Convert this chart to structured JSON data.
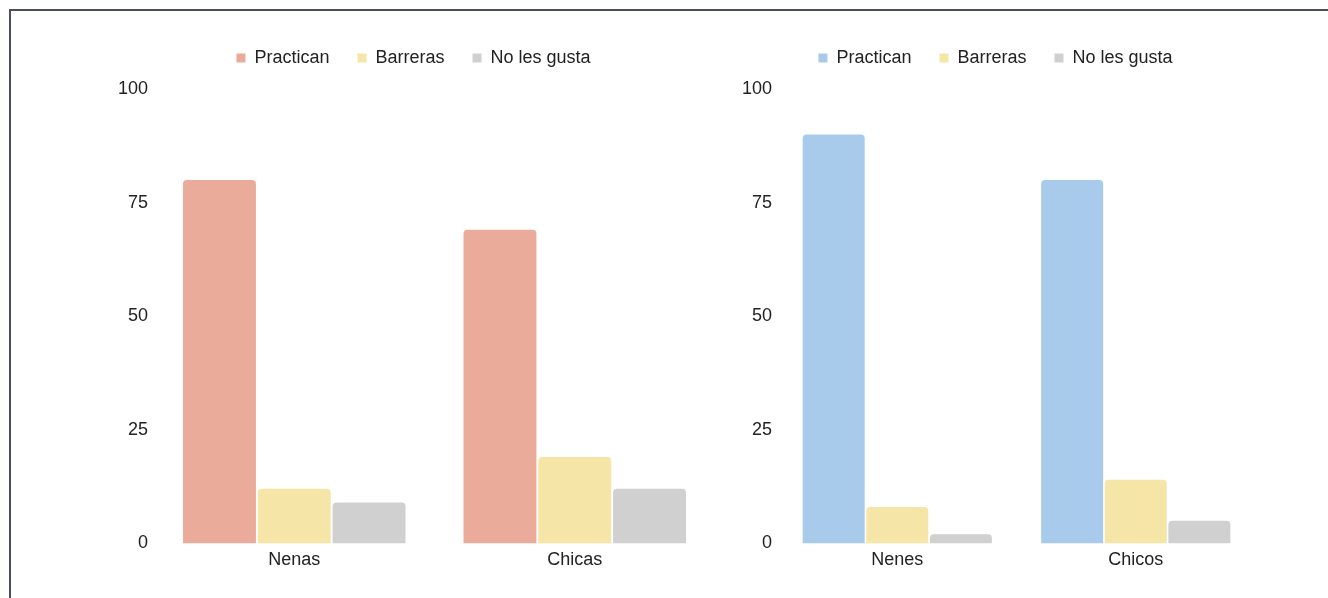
{
  "chart_data": [
    {
      "type": "bar",
      "categories": [
        "Nenas",
        "Chicas"
      ],
      "series": [
        {
          "name": "Practican",
          "color": "#ebab9a",
          "values": [
            80,
            69
          ]
        },
        {
          "name": "Barreras",
          "color": "#f5e6a8",
          "values": [
            12,
            19
          ]
        },
        {
          "name": "No les gusta",
          "color": "#d0d0d0",
          "values": [
            9,
            12
          ]
        }
      ],
      "ylim": [
        0,
        100
      ],
      "yticks": [
        0,
        25,
        50,
        75,
        100
      ],
      "legend": "top"
    },
    {
      "type": "bar",
      "categories": [
        "Nenes",
        "Chicos"
      ],
      "series": [
        {
          "name": "Practican",
          "color": "#a8cbeb",
          "values": [
            90,
            80
          ]
        },
        {
          "name": "Barreras",
          "color": "#f5e6a8",
          "values": [
            8,
            14
          ]
        },
        {
          "name": "No les gusta",
          "color": "#d0d0d0",
          "values": [
            2,
            5
          ]
        }
      ],
      "ylim": [
        0,
        100
      ],
      "yticks": [
        0,
        25,
        50,
        75,
        100
      ],
      "legend": "top"
    }
  ]
}
